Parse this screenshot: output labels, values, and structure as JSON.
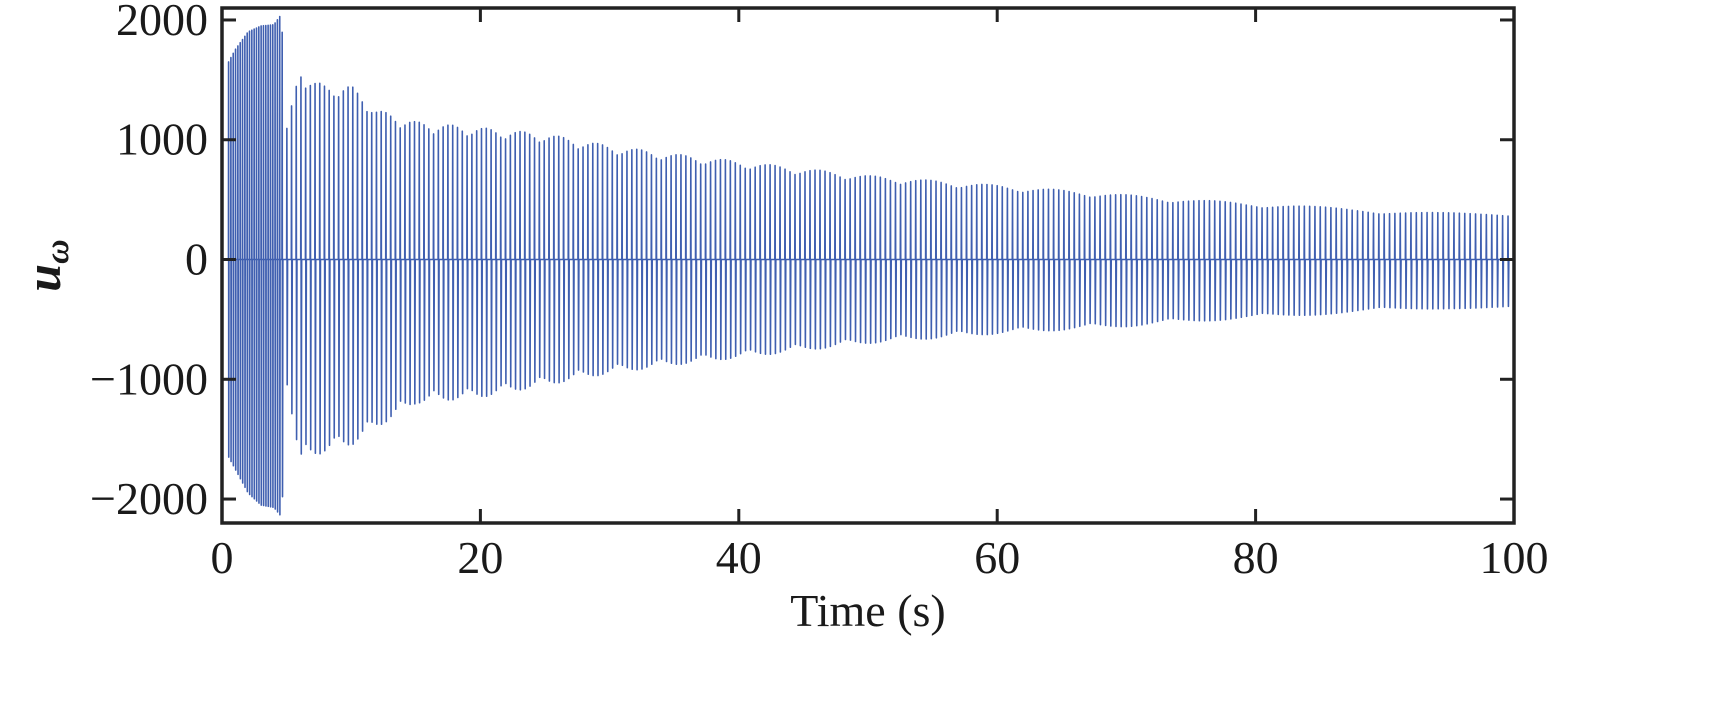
{
  "chart_data": {
    "type": "line",
    "title": "",
    "xlabel": "Time (s)",
    "ylabel": "u",
    "ylabel_subscript": "ω",
    "xlim": [
      0,
      100
    ],
    "ylim": [
      -2200,
      2100
    ],
    "xticks": [
      0,
      20,
      40,
      60,
      80,
      100
    ],
    "xtick_labels": [
      "0",
      "20",
      "40",
      "60",
      "80",
      "100"
    ],
    "yticks": [
      2000,
      1000,
      0,
      -1000,
      -2000
    ],
    "ytick_labels": [
      "2000",
      "1000",
      "0",
      "−1000",
      "−2000"
    ],
    "grid": false,
    "line_color": "#3f5fb0",
    "series": [
      {
        "signal": "oscillating control input, amplitude decaying over time",
        "envelope_time": [
          0.5,
          1,
          2,
          3,
          4,
          4.6,
          5,
          6,
          7,
          8,
          10,
          12,
          15,
          20,
          25,
          30,
          35,
          40,
          45,
          50,
          55,
          60,
          65,
          70,
          75,
          80,
          85,
          90,
          95,
          100
        ],
        "envelope_upper": [
          1650,
          1750,
          1900,
          1950,
          1960,
          2050,
          1100,
          1600,
          1500,
          1450,
          1450,
          1250,
          1150,
          1100,
          1050,
          950,
          880,
          820,
          760,
          700,
          660,
          620,
          580,
          540,
          500,
          470,
          440,
          410,
          390,
          370
        ],
        "envelope_lower": [
          -1650,
          -1750,
          -1950,
          -2050,
          -2070,
          -2150,
          -1050,
          -1700,
          -1650,
          -1600,
          -1550,
          -1400,
          -1200,
          -1150,
          -1050,
          -950,
          -880,
          -820,
          -760,
          -700,
          -660,
          -620,
          -590,
          -560,
          -520,
          -490,
          -460,
          -430,
          -410,
          -400
        ]
      }
    ]
  }
}
